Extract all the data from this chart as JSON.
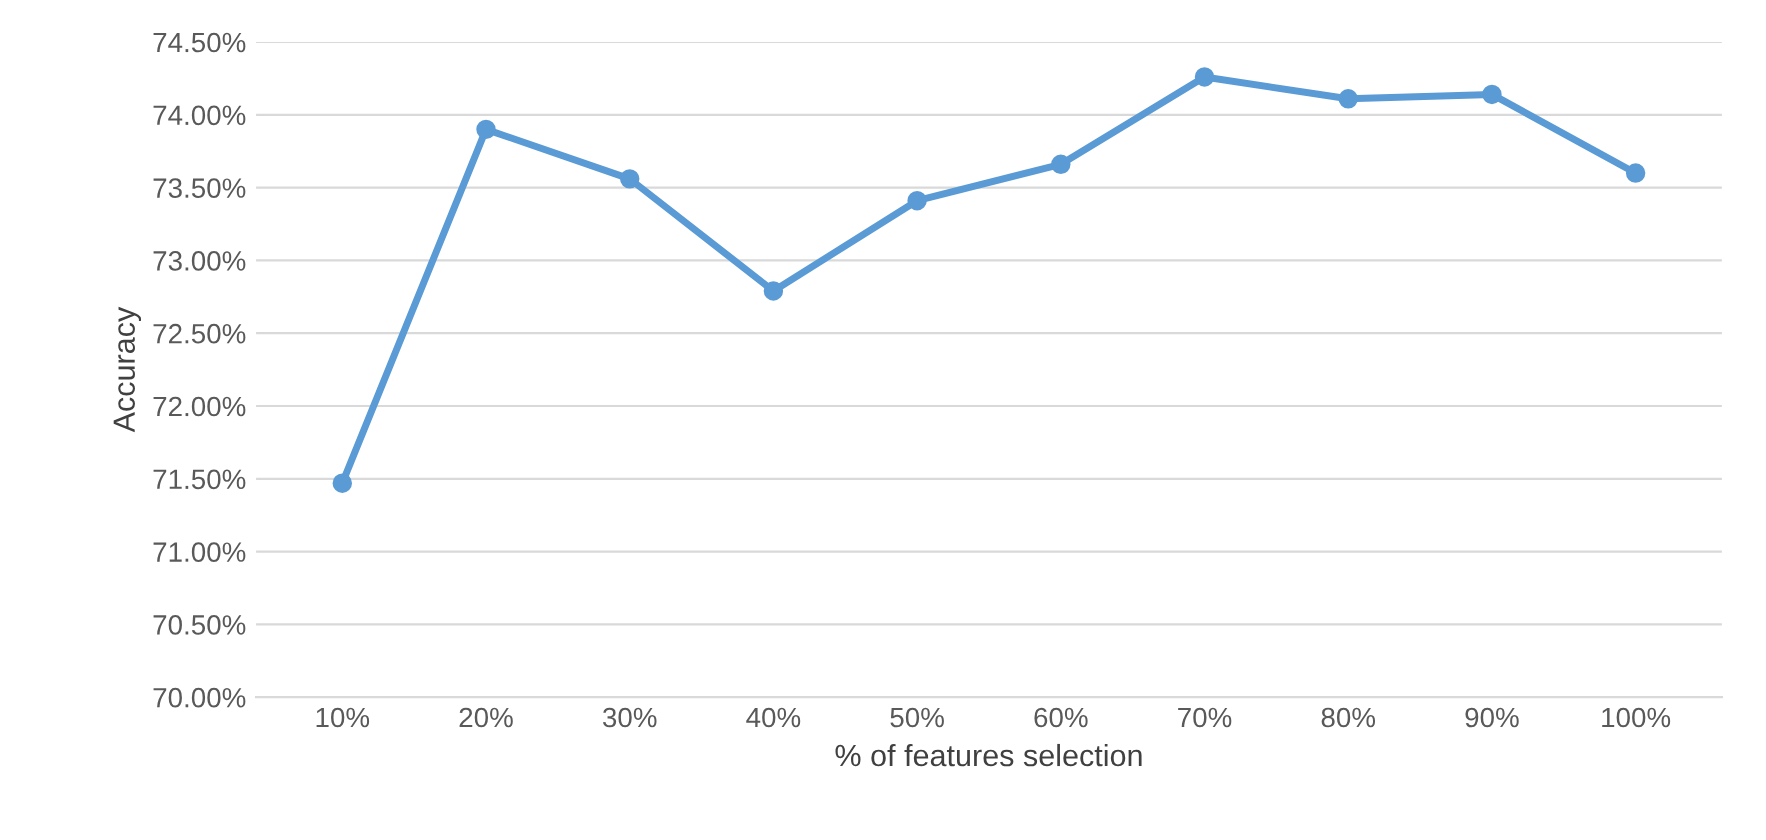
{
  "chart_data": {
    "type": "line",
    "xlabel": "% of features selection",
    "ylabel": "Accuracy",
    "categories": [
      "10%",
      "20%",
      "30%",
      "40%",
      "50%",
      "60%",
      "70%",
      "80%",
      "90%",
      "100%"
    ],
    "series": [
      {
        "color": "#5b9bd5",
        "values": [
          71.47,
          73.9,
          73.56,
          72.79,
          73.41,
          73.66,
          74.26,
          74.11,
          74.14,
          73.6
        ]
      }
    ],
    "ylim": [
      70.0,
      74.5
    ],
    "yticks": [
      {
        "value": 70.0,
        "label": "70.00%"
      },
      {
        "value": 70.5,
        "label": "70.50%"
      },
      {
        "value": 71.0,
        "label": "71.00%"
      },
      {
        "value": 71.5,
        "label": "71.50%"
      },
      {
        "value": 72.0,
        "label": "72.00%"
      },
      {
        "value": 72.5,
        "label": "72.50%"
      },
      {
        "value": 73.0,
        "label": "73.00%"
      },
      {
        "value": 73.5,
        "label": "73.50%"
      },
      {
        "value": 74.0,
        "label": "74.00%"
      },
      {
        "value": 74.5,
        "label": "74.50%"
      }
    ],
    "grid": "y",
    "marker": "circle",
    "line_style": "solid"
  }
}
